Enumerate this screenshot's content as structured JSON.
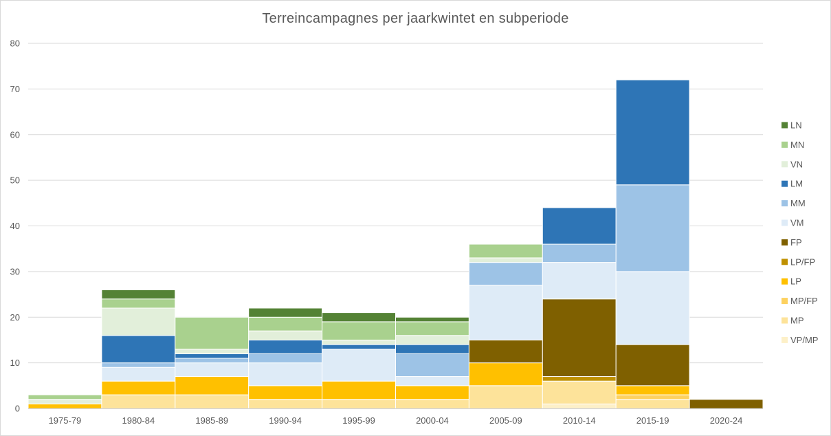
{
  "chart_data": {
    "type": "bar",
    "stacked": true,
    "title": "Terreincampagnes per jaarkwintet en subperiode",
    "xlabel": "",
    "ylabel": "",
    "ylim": [
      0,
      80
    ],
    "yticks": [
      0,
      10,
      20,
      30,
      40,
      50,
      60,
      70,
      80
    ],
    "grid": true,
    "legend_position": "right",
    "categories": [
      "1975-79",
      "1980-84",
      "1985-89",
      "1990-94",
      "1995-99",
      "2000-04",
      "2005-09",
      "2010-14",
      "2015-19",
      "2020-24"
    ],
    "series": [
      {
        "name": "VP/MP",
        "color": "#fdf0c8",
        "values": [
          0,
          0,
          0,
          0,
          0,
          0,
          0,
          1,
          0,
          0
        ]
      },
      {
        "name": "MP",
        "color": "#fde39a",
        "values": [
          0,
          3,
          3,
          2,
          2,
          2,
          5,
          5,
          2,
          0
        ]
      },
      {
        "name": "MP/FP",
        "color": "#fdd15f",
        "values": [
          0,
          0,
          0,
          0,
          0,
          0,
          0,
          0,
          1,
          0
        ]
      },
      {
        "name": "LP",
        "color": "#ffc000",
        "values": [
          1,
          3,
          4,
          3,
          4,
          3,
          5,
          0,
          2,
          0
        ]
      },
      {
        "name": "LP/FP",
        "color": "#bf9000",
        "values": [
          0,
          0,
          0,
          0,
          0,
          0,
          0,
          1,
          0,
          0
        ]
      },
      {
        "name": "FP",
        "color": "#7f6000",
        "values": [
          0,
          0,
          0,
          0,
          0,
          0,
          5,
          17,
          9,
          2
        ]
      },
      {
        "name": "VM",
        "color": "#deebf7",
        "values": [
          0,
          3,
          3,
          5,
          7,
          2,
          12,
          8,
          16,
          0
        ]
      },
      {
        "name": "MM",
        "color": "#9dc3e6",
        "values": [
          0,
          1,
          1,
          2,
          0,
          5,
          5,
          4,
          19,
          0
        ]
      },
      {
        "name": "LM",
        "color": "#2e75b6",
        "values": [
          0,
          6,
          1,
          3,
          1,
          2,
          0,
          8,
          23,
          0
        ]
      },
      {
        "name": "VN",
        "color": "#e2efda",
        "values": [
          1,
          6,
          1,
          2,
          1,
          2,
          1,
          0,
          0,
          0
        ]
      },
      {
        "name": "MN",
        "color": "#a9d18e",
        "values": [
          1,
          2,
          7,
          3,
          4,
          3,
          3,
          0,
          0,
          0
        ]
      },
      {
        "name": "LN",
        "color": "#548235",
        "values": [
          0,
          2,
          0,
          2,
          2,
          1,
          0,
          0,
          0,
          0
        ]
      }
    ]
  }
}
